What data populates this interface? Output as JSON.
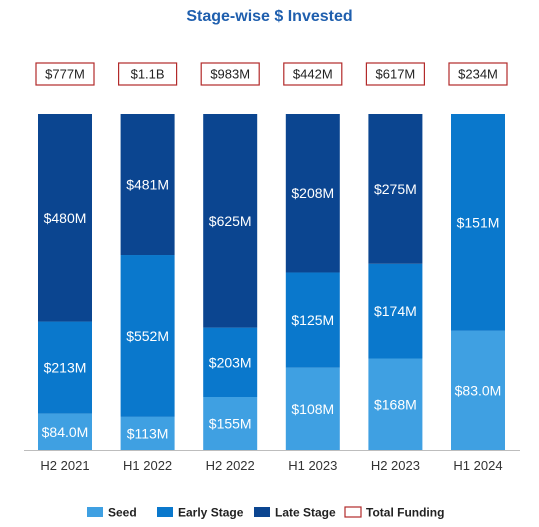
{
  "chart_data": {
    "type": "bar",
    "stacked": true,
    "title": "Stage-wise $ Invested",
    "categories": [
      "H2 2021",
      "H1 2022",
      "H2 2022",
      "H1 2023",
      "H2 2023",
      "H1 2024"
    ],
    "series": [
      {
        "name": "Seed",
        "color": "#3fa0e2",
        "values": [
          84.0,
          113,
          155,
          108,
          168,
          83.0
        ],
        "labels": [
          "$84.0M",
          "$113M",
          "$155M",
          "$108M",
          "$168M",
          "$83.0M"
        ]
      },
      {
        "name": "Early Stage",
        "color": "#0a78cc",
        "values": [
          213,
          552,
          203,
          125,
          174,
          151
        ],
        "labels": [
          "$213M",
          "$552M",
          "$203M",
          "$125M",
          "$174M",
          "$151M"
        ]
      },
      {
        "name": "Late Stage",
        "color": "#0b4590",
        "values": [
          480,
          481,
          625,
          208,
          275,
          0
        ],
        "labels": [
          "$480M",
          "$481M",
          "$625M",
          "$208M",
          "$275M",
          ""
        ]
      }
    ],
    "totals": {
      "name": "Total Funding",
      "values": [
        777,
        1100,
        983,
        442,
        617,
        234
      ],
      "labels": [
        "$777M",
        "$1.1B",
        "$983M",
        "$442M",
        "$617M",
        "$234M"
      ],
      "border_color": "#b22a2a"
    },
    "legend_position": "bottom",
    "grid": false
  }
}
